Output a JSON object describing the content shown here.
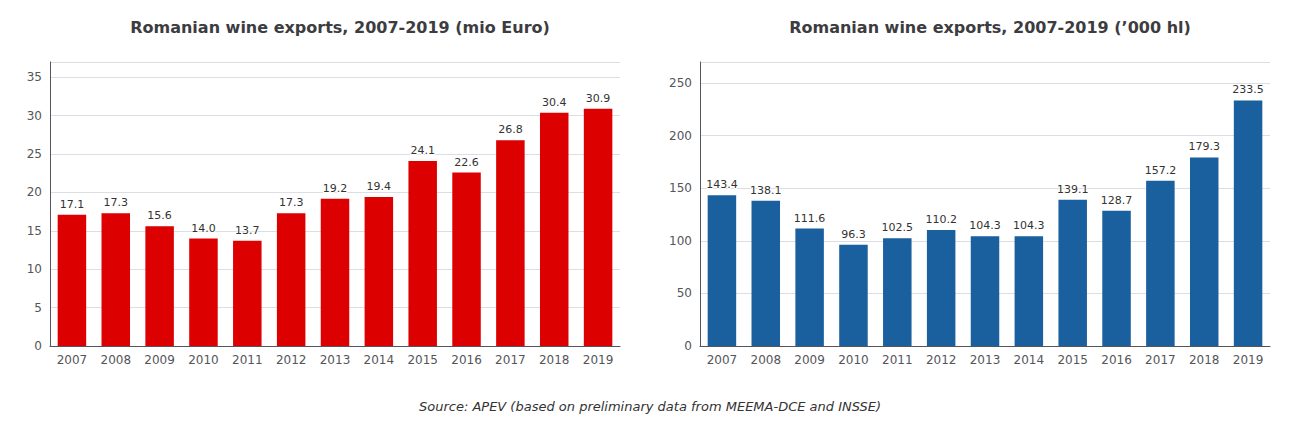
{
  "chart_data": [
    {
      "type": "bar",
      "title": "Romanian wine exports, 2007-2019 (mio Euro)",
      "categories": [
        "2007",
        "2008",
        "2009",
        "2010",
        "2011",
        "2012",
        "2013",
        "2014",
        "2015",
        "2016",
        "2017",
        "2018",
        "2019"
      ],
      "values": [
        17.1,
        17.3,
        15.6,
        14.0,
        13.7,
        17.3,
        19.2,
        19.4,
        24.1,
        22.6,
        26.8,
        30.4,
        30.9
      ],
      "value_labels": [
        "17.1",
        "17.3",
        "15.6",
        "14.0",
        "13.7",
        "17.3",
        "19.2",
        "19.4",
        "24.1",
        "22.6",
        "26.8",
        "30.4",
        "30.9"
      ],
      "color": "#dd0000",
      "ylim": [
        0,
        37
      ],
      "yticks": [
        0,
        5,
        10,
        15,
        20,
        25,
        30,
        35
      ],
      "grid": true,
      "data_labels": true
    },
    {
      "type": "bar",
      "title": "Romanian wine exports, 2007-2019 (’000 hl)",
      "categories": [
        "2007",
        "2008",
        "2009",
        "2010",
        "2011",
        "2012",
        "2013",
        "2014",
        "2015",
        "2016",
        "2017",
        "2018",
        "2019"
      ],
      "values": [
        143.4,
        138.1,
        111.6,
        96.3,
        102.5,
        110.2,
        104.3,
        104.3,
        139.1,
        128.7,
        157.2,
        179.3,
        233.5
      ],
      "color": "#1a5f9e",
      "ylim": [
        0,
        270
      ],
      "yticks": [
        0,
        50,
        100,
        150,
        200,
        250
      ],
      "grid": true,
      "data_labels": true
    }
  ],
  "annotations": [
    "Source: APEV (based on preliminary data from MEEMA-DCE and INSSE)"
  ]
}
